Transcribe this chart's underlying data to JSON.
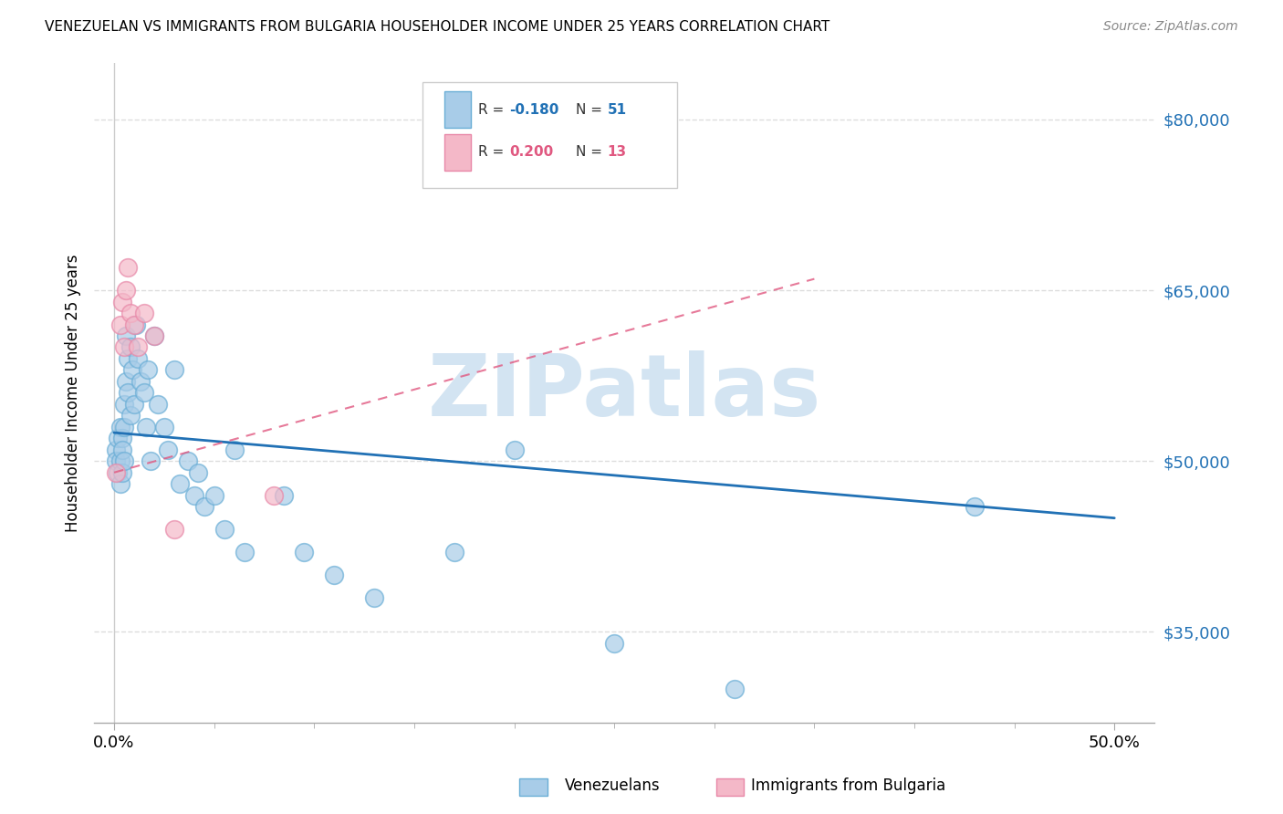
{
  "title": "VENEZUELAN VS IMMIGRANTS FROM BULGARIA HOUSEHOLDER INCOME UNDER 25 YEARS CORRELATION CHART",
  "source": "Source: ZipAtlas.com",
  "ylabel": "Householder Income Under 25 years",
  "xlim": [
    -0.01,
    0.52
  ],
  "ylim": [
    27000,
    85000
  ],
  "ylabel_ticks": [
    "$35,000",
    "$50,000",
    "$65,000",
    "$80,000"
  ],
  "ylabel_vals": [
    35000,
    50000,
    65000,
    80000
  ],
  "xlabel_ticks_major": [
    0.0,
    0.5
  ],
  "xlabel_labels_major": [
    "0.0%",
    "50.0%"
  ],
  "xlabel_ticks_minor": [
    0.05,
    0.1,
    0.15,
    0.2,
    0.25,
    0.3,
    0.35,
    0.4,
    0.45
  ],
  "blue_color": "#a8cce8",
  "blue_edge_color": "#6aaed6",
  "pink_color": "#f4b8c8",
  "pink_edge_color": "#e888a8",
  "blue_line_color": "#2171b5",
  "pink_line_color": "#e05880",
  "grid_color": "#dddddd",
  "watermark_color": "#cce0f0",
  "venezuelan_x": [
    0.001,
    0.001,
    0.002,
    0.002,
    0.003,
    0.003,
    0.003,
    0.004,
    0.004,
    0.004,
    0.005,
    0.005,
    0.005,
    0.006,
    0.006,
    0.007,
    0.007,
    0.008,
    0.008,
    0.009,
    0.01,
    0.011,
    0.012,
    0.013,
    0.015,
    0.016,
    0.017,
    0.018,
    0.02,
    0.022,
    0.025,
    0.027,
    0.03,
    0.033,
    0.037,
    0.04,
    0.042,
    0.045,
    0.05,
    0.055,
    0.06,
    0.065,
    0.085,
    0.095,
    0.11,
    0.13,
    0.17,
    0.2,
    0.25,
    0.31,
    0.43
  ],
  "venezuelan_y": [
    51000,
    50000,
    52000,
    49000,
    53000,
    50000,
    48000,
    52000,
    49000,
    51000,
    53000,
    55000,
    50000,
    61000,
    57000,
    59000,
    56000,
    60000,
    54000,
    58000,
    55000,
    62000,
    59000,
    57000,
    56000,
    53000,
    58000,
    50000,
    61000,
    55000,
    53000,
    51000,
    58000,
    48000,
    50000,
    47000,
    49000,
    46000,
    47000,
    44000,
    51000,
    42000,
    47000,
    42000,
    40000,
    38000,
    42000,
    51000,
    34000,
    30000,
    46000
  ],
  "bulgarian_x": [
    0.001,
    0.003,
    0.004,
    0.005,
    0.006,
    0.007,
    0.008,
    0.01,
    0.012,
    0.015,
    0.02,
    0.03,
    0.08
  ],
  "bulgarian_y": [
    49000,
    62000,
    64000,
    60000,
    65000,
    67000,
    63000,
    62000,
    60000,
    63000,
    61000,
    44000,
    47000
  ],
  "blue_line_x0": 0.0,
  "blue_line_y0": 52500,
  "blue_line_x1": 0.5,
  "blue_line_y1": 45000,
  "pink_line_x0": 0.0,
  "pink_line_y0": 49000,
  "pink_line_x1": 0.35,
  "pink_line_y1": 66000
}
